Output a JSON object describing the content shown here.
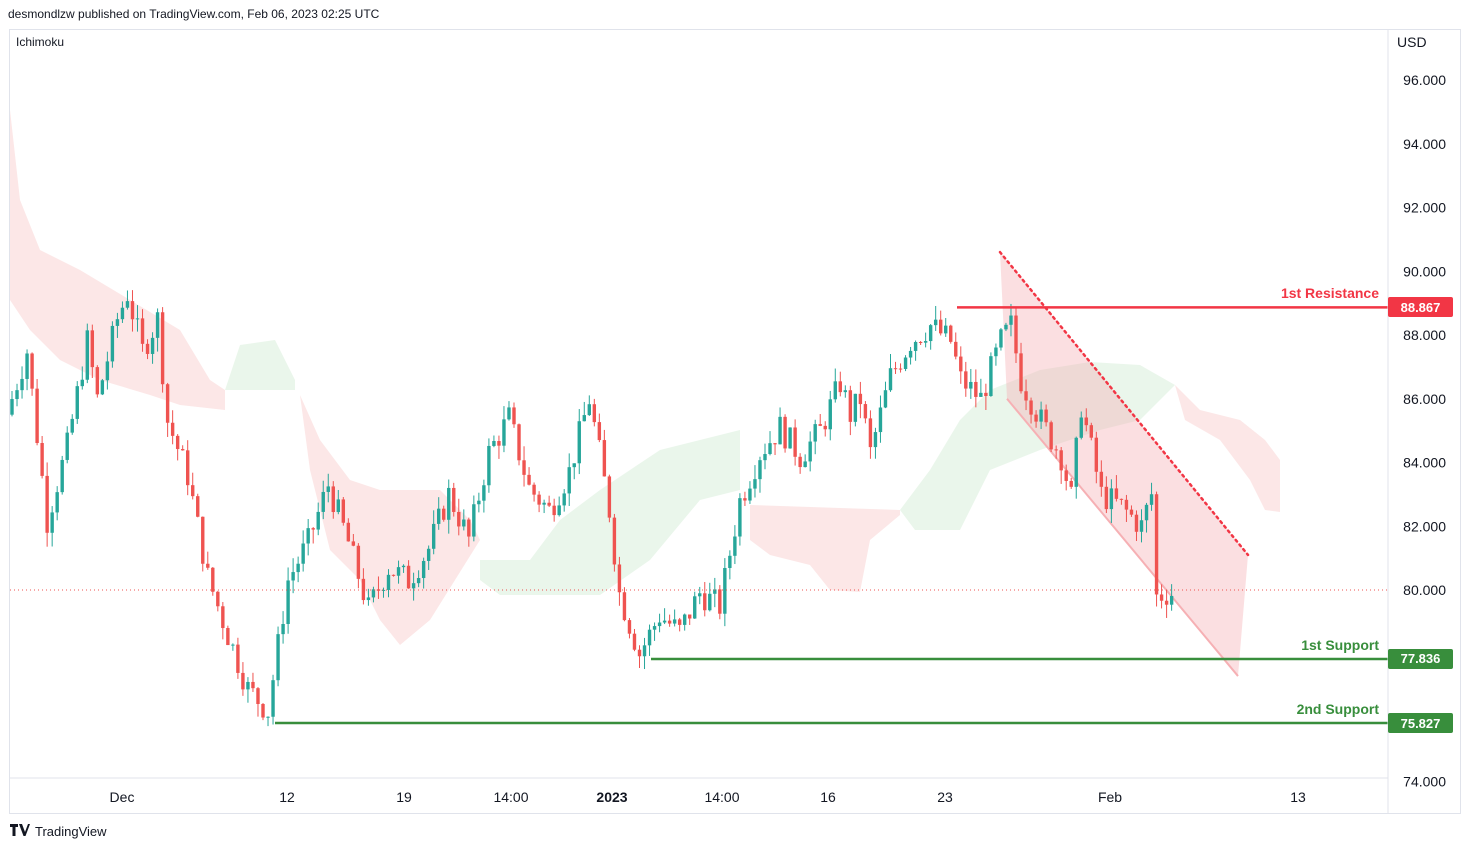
{
  "header": {
    "publisher_line": "desmondlzw published on TradingView.com, Feb 06, 2023 02:25 UTC"
  },
  "indicator": {
    "name": "Ichimoku"
  },
  "footer": {
    "brand": "TradingView",
    "logo_icon": "tradingview-logo-icon"
  },
  "colors": {
    "up": "#26a69a",
    "down": "#ef5350",
    "resistance": "#f23645",
    "support": "#388e3c",
    "cloud_bear": "#fce4e4",
    "cloud_bull": "#e8f5e9",
    "channel": "#f6b0b4"
  },
  "chart_data": {
    "type": "candlestick",
    "currency_label": "USD",
    "y_ticks": [
      "96.000",
      "94.000",
      "92.000",
      "90.000",
      "88.000",
      "86.000",
      "84.000",
      "82.000",
      "80.000",
      "74.000"
    ],
    "y_tick_values": [
      96,
      94,
      92,
      90,
      88,
      86,
      84,
      82,
      80,
      74
    ],
    "ylim": [
      73.5,
      97.4
    ],
    "x_ticks": [
      "Dec",
      "12",
      "19",
      "14:00",
      "2023",
      "14:00",
      "16",
      "23",
      "Feb",
      "13"
    ],
    "last_price": 80.0,
    "levels": [
      {
        "name": "1st Resistance",
        "value": 88.867,
        "label": "88.867",
        "type": "resistance"
      },
      {
        "name": "1st Support",
        "value": 77.836,
        "label": "77.836",
        "type": "support"
      },
      {
        "name": "2nd Support",
        "value": 75.827,
        "label": "75.827",
        "type": "support"
      }
    ],
    "price_path": [
      [
        0,
        85.5
      ],
      [
        4,
        87.5
      ],
      [
        8,
        82.2
      ],
      [
        12,
        84.5
      ],
      [
        16,
        87.8
      ],
      [
        18,
        86.0
      ],
      [
        22,
        88.5
      ],
      [
        24,
        89.3
      ],
      [
        27,
        87.5
      ],
      [
        30,
        88.5
      ],
      [
        32,
        85.3
      ],
      [
        36,
        83.6
      ],
      [
        40,
        80.4
      ],
      [
        44,
        78.6
      ],
      [
        48,
        76.9
      ],
      [
        52,
        76.2
      ],
      [
        56,
        80.3
      ],
      [
        60,
        81.5
      ],
      [
        64,
        83.3
      ],
      [
        68,
        81.5
      ],
      [
        72,
        79.4
      ],
      [
        76,
        80.7
      ],
      [
        80,
        80.3
      ],
      [
        84,
        81.3
      ],
      [
        88,
        83.0
      ],
      [
        92,
        81.6
      ],
      [
        96,
        84.3
      ],
      [
        100,
        85.4
      ],
      [
        104,
        83.2
      ],
      [
        108,
        82.5
      ],
      [
        112,
        83.7
      ],
      [
        116,
        86.0
      ],
      [
        118,
        84.3
      ],
      [
        120,
        82.5
      ],
      [
        122,
        79.9
      ],
      [
        126,
        78.0
      ],
      [
        130,
        79.2
      ],
      [
        134,
        78.7
      ],
      [
        138,
        79.9
      ],
      [
        142,
        79.5
      ],
      [
        146,
        82.8
      ],
      [
        150,
        84.3
      ],
      [
        154,
        85.1
      ],
      [
        158,
        84.2
      ],
      [
        162,
        85.0
      ],
      [
        166,
        86.5
      ],
      [
        168,
        85.5
      ],
      [
        170,
        86.0
      ],
      [
        172,
        84.3
      ],
      [
        176,
        86.7
      ],
      [
        180,
        87.8
      ],
      [
        184,
        88.3
      ],
      [
        188,
        87.8
      ],
      [
        190,
        86.6
      ],
      [
        194,
        86.0
      ],
      [
        198,
        87.8
      ],
      [
        200,
        88.3
      ],
      [
        202,
        86.6
      ],
      [
        206,
        85.3
      ],
      [
        210,
        84.2
      ],
      [
        212,
        82.9
      ],
      [
        214,
        85.8
      ],
      [
        218,
        83.0
      ],
      [
        222,
        82.6
      ],
      [
        226,
        82.0
      ],
      [
        228,
        83.0
      ],
      [
        229,
        79.8
      ],
      [
        231,
        79.9
      ]
    ],
    "channel": {
      "upper": [
        [
          1000,
          90.6
        ],
        [
          1248,
          81.1
        ]
      ],
      "lower": [
        [
          1007,
          86.0
        ],
        [
          1238,
          77.3
        ]
      ]
    }
  }
}
